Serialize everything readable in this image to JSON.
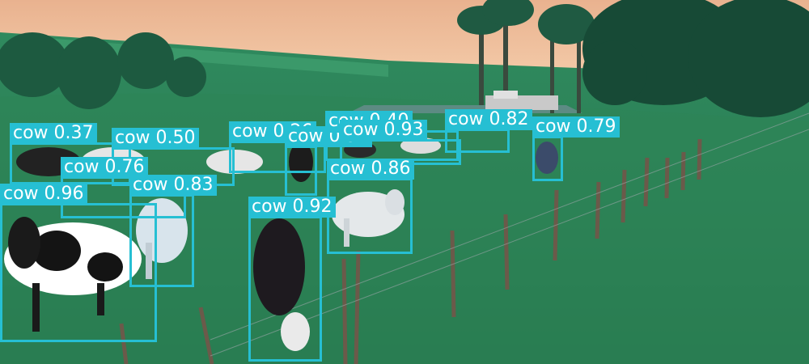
{
  "image": {
    "description_icon": "pasture-photo",
    "box_color": "#26bfd3",
    "label_text_color": "#ffffff"
  },
  "detections": [
    {
      "label": "cow 0.37"
    },
    {
      "label": "cow 0.50"
    },
    {
      "label": "cow 0.26"
    },
    {
      "label": "cow 0.92"
    },
    {
      "label": "cow 0.40"
    },
    {
      "label": "cow 0.82"
    },
    {
      "label": "cow 0.93"
    },
    {
      "label": "cow 0.79"
    },
    {
      "label": "cow 0.76"
    },
    {
      "label": "cow 0.83"
    },
    {
      "label": "cow 0.86"
    },
    {
      "label": "cow 0.96"
    },
    {
      "label": "cow 0.92"
    }
  ]
}
